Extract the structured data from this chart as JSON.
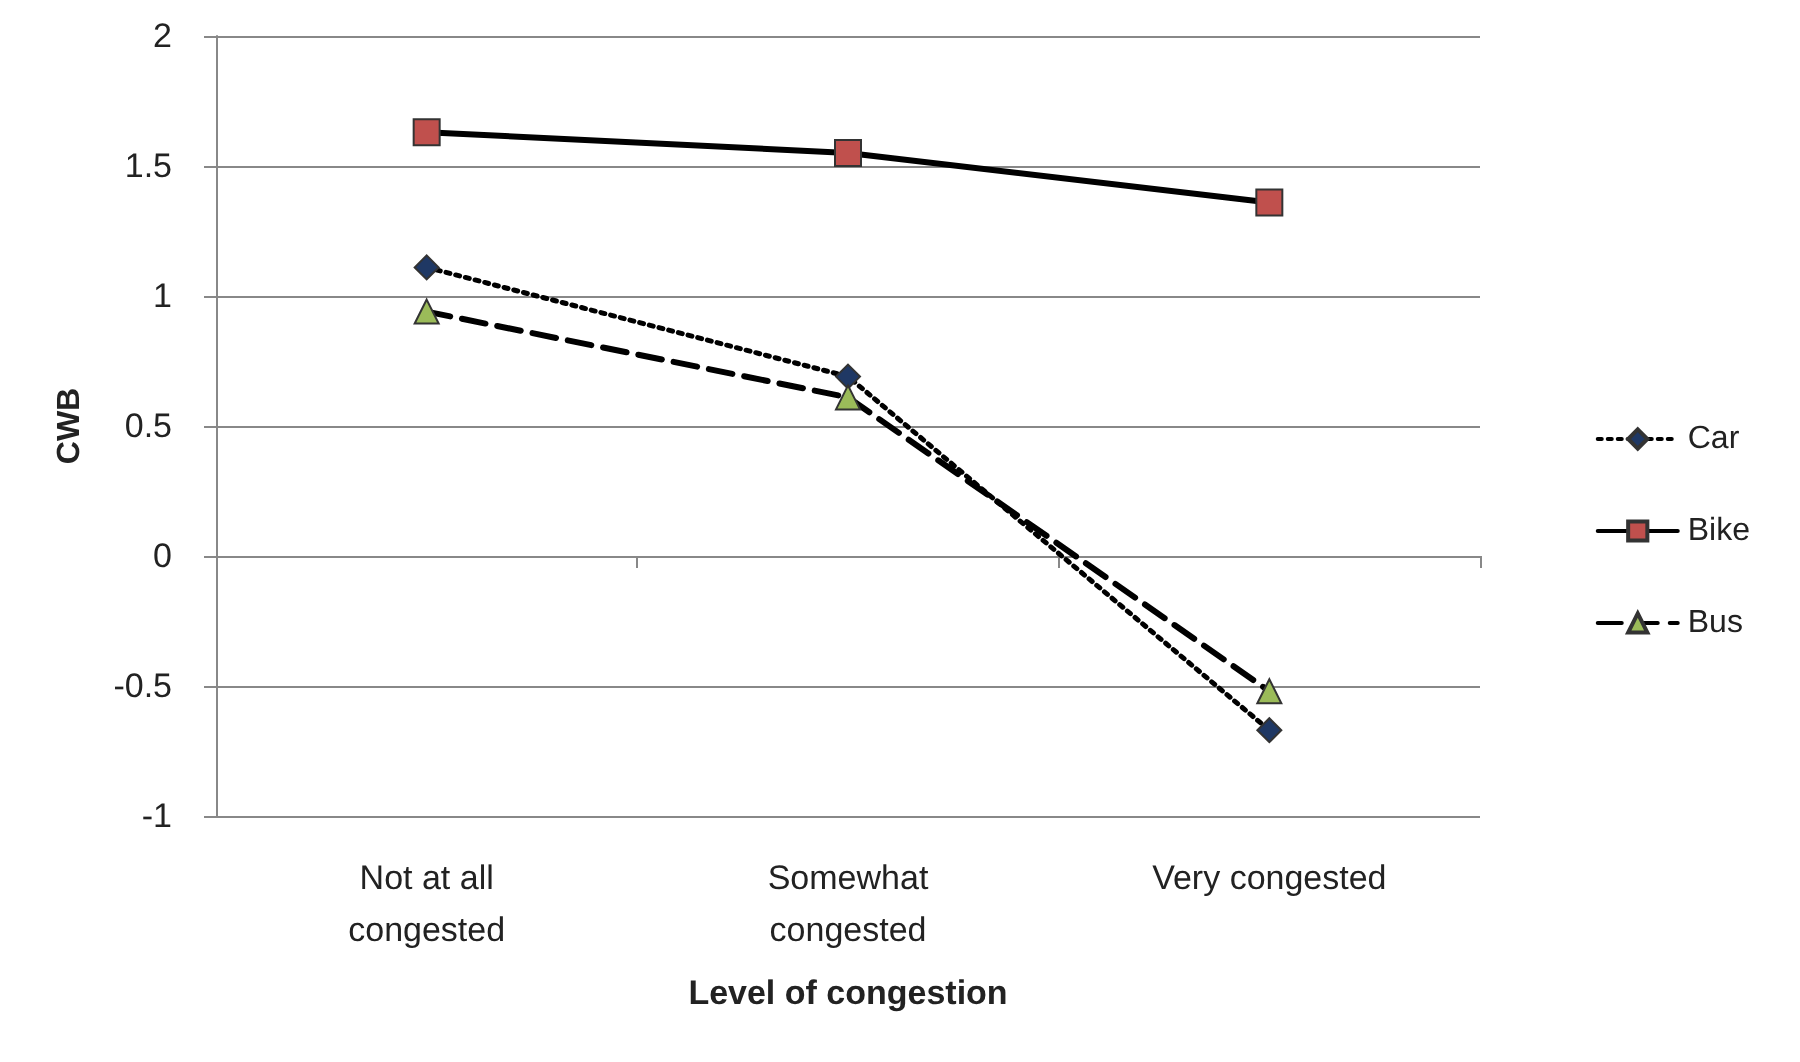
{
  "chart_data": {
    "type": "line",
    "xlabel": "Level of congestion",
    "ylabel": "CWB",
    "categories": [
      "Not at all\ncongested",
      "Somewhat\ncongested",
      "Very congested"
    ],
    "series": [
      {
        "name": "Car",
        "color": "#1f3864",
        "values": [
          1.11,
          0.69,
          -0.67
        ],
        "marker": "diamond",
        "line_style": "dotted"
      },
      {
        "name": "Bike",
        "color": "#c0504d",
        "values": [
          1.63,
          1.55,
          1.36
        ],
        "marker": "square",
        "line_style": "solid"
      },
      {
        "name": "Bus",
        "color": "#9bbb59",
        "values": [
          0.94,
          0.61,
          -0.52
        ],
        "marker": "triangle",
        "line_style": "dashed"
      }
    ],
    "ylim": [
      -1,
      2
    ],
    "yticks": [
      -1,
      -0.5,
      0,
      0.5,
      1,
      1.5,
      2
    ],
    "grid": "y",
    "legend": "right"
  }
}
